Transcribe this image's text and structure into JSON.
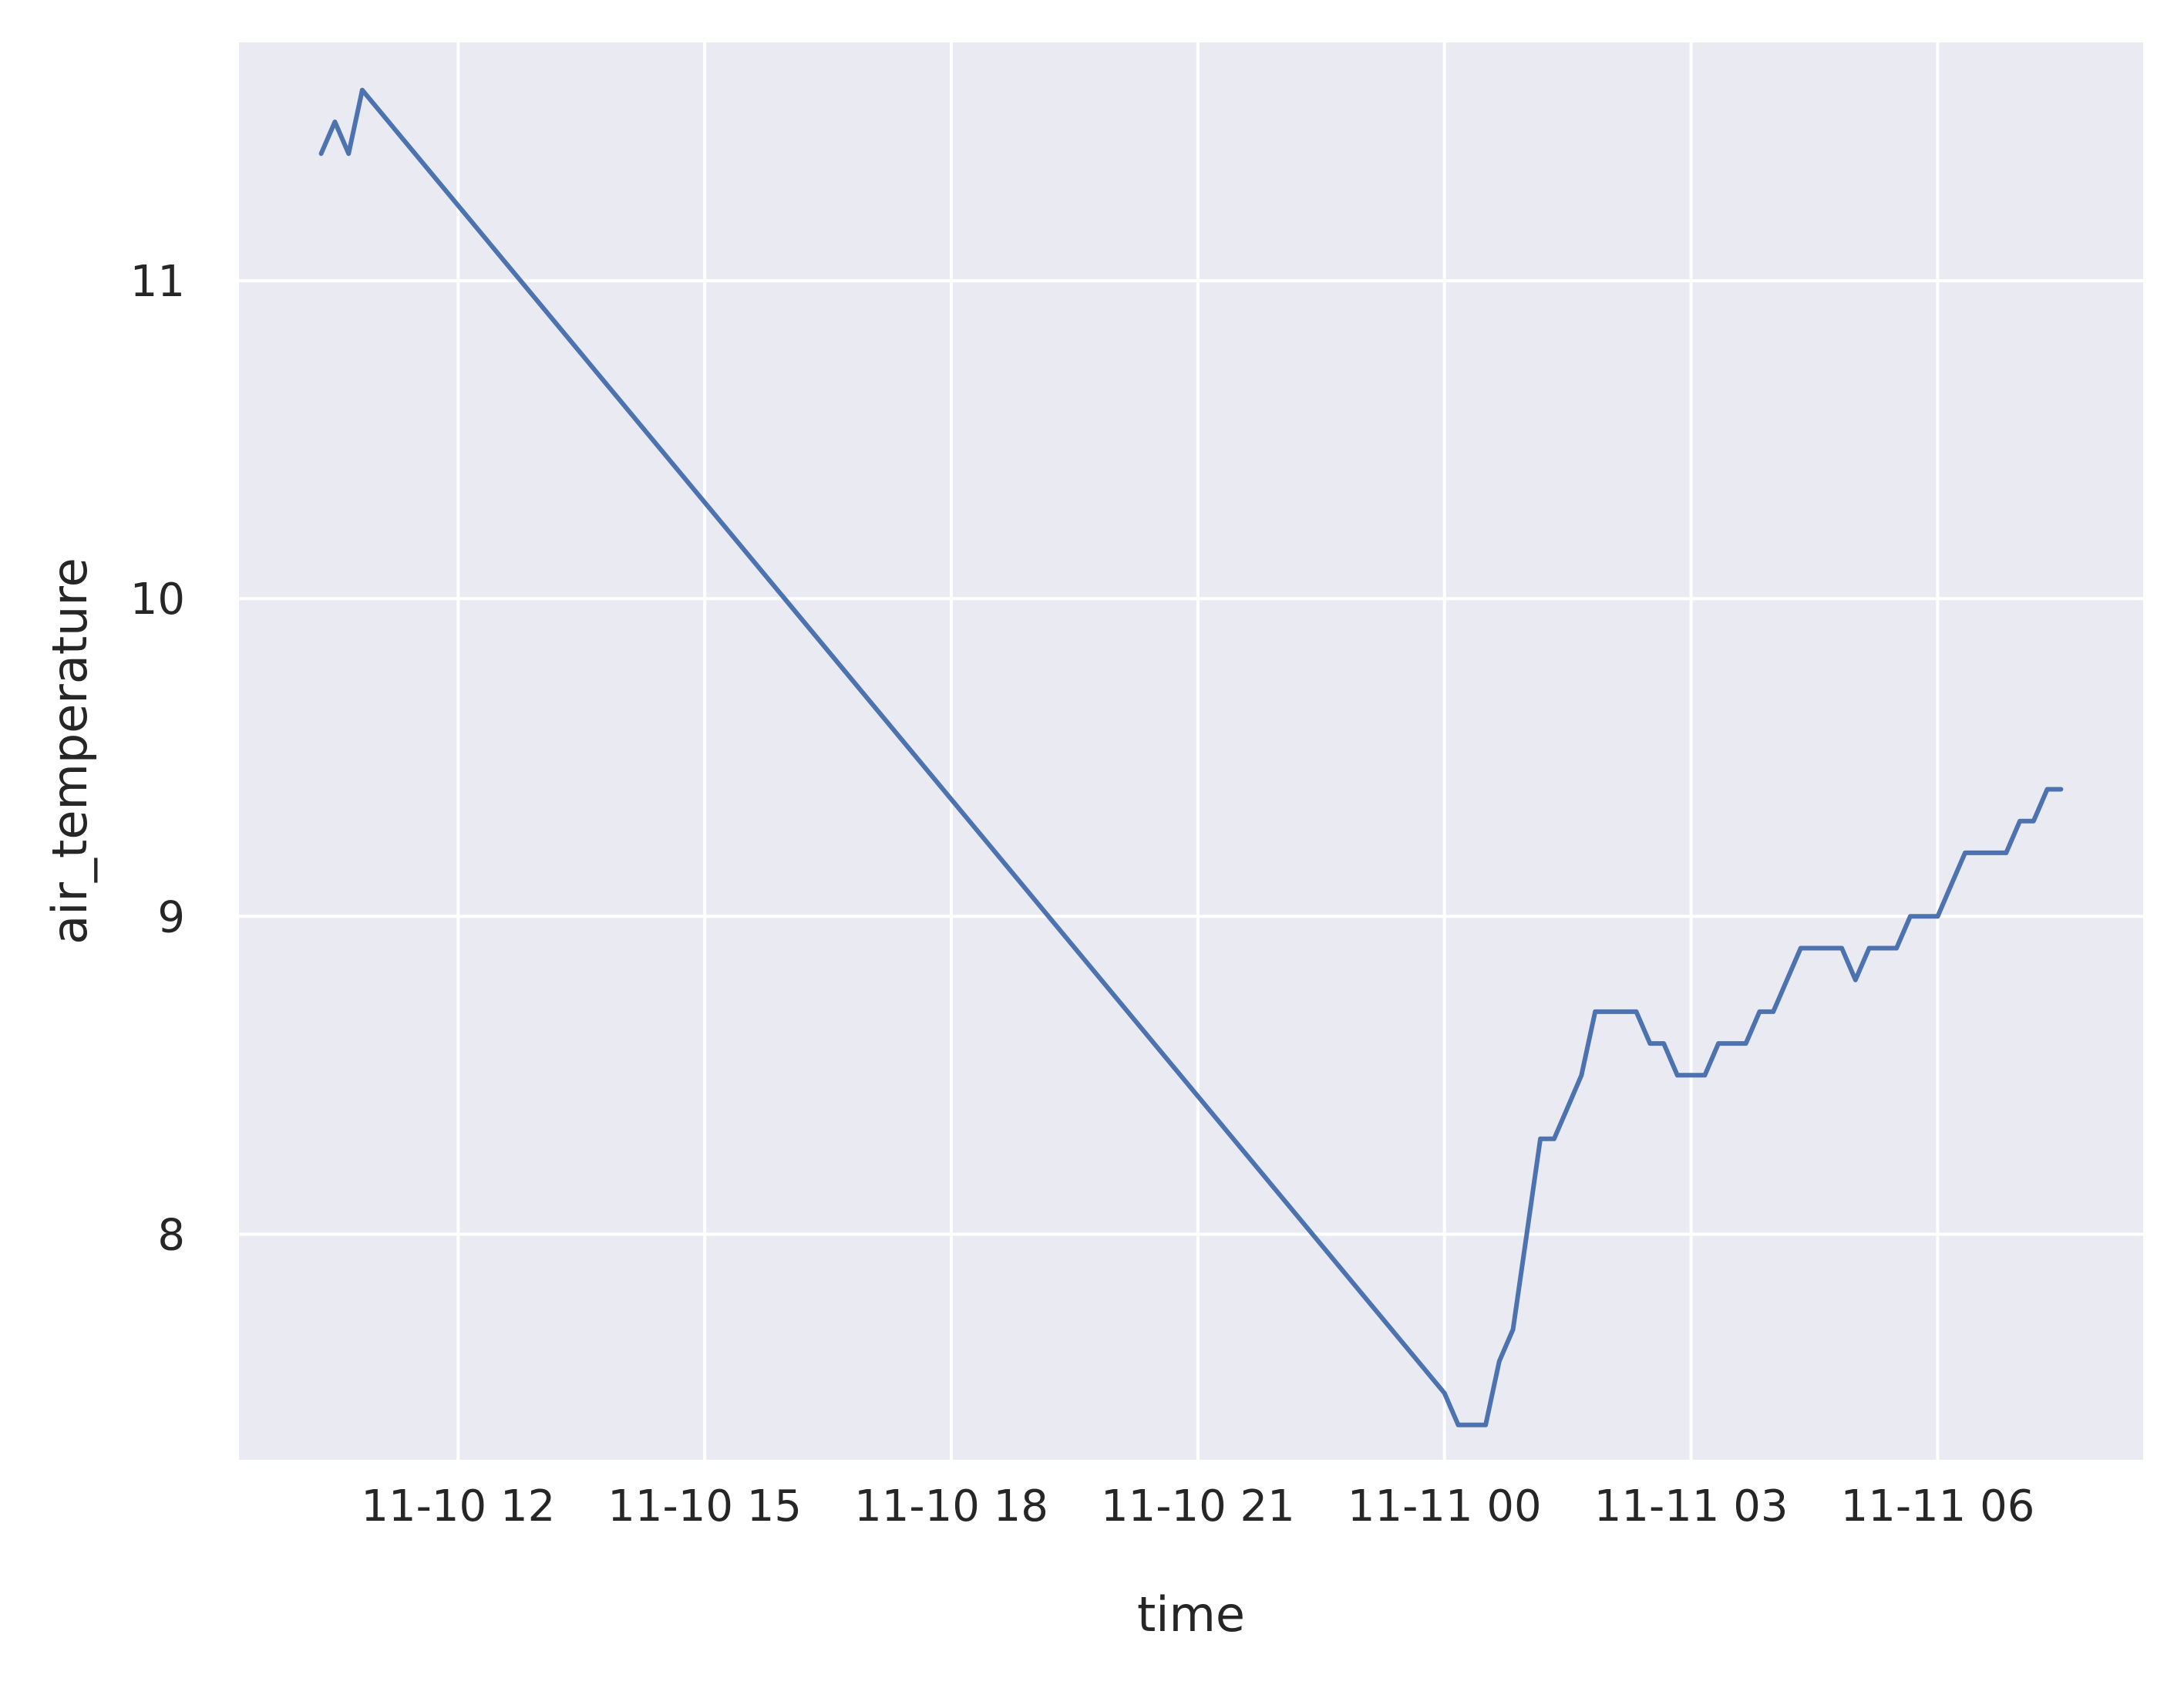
{
  "chart_data": {
    "type": "line",
    "xlabel": "time",
    "ylabel": "air_temperature",
    "x_ticks": [
      {
        "label": "11-10 12",
        "time": "2023-11-10T12:00"
      },
      {
        "label": "11-10 15",
        "time": "2023-11-10T15:00"
      },
      {
        "label": "11-10 18",
        "time": "2023-11-10T18:00"
      },
      {
        "label": "11-10 21",
        "time": "2023-11-10T21:00"
      },
      {
        "label": "11-11 00",
        "time": "2023-11-11T00:00"
      },
      {
        "label": "11-11 03",
        "time": "2023-11-11T03:00"
      },
      {
        "label": "11-11 06",
        "time": "2023-11-11T06:00"
      }
    ],
    "y_ticks": [
      8,
      9,
      10,
      11
    ],
    "xlim": [
      "2023-11-10T09:20",
      "2023-11-11T08:30"
    ],
    "ylim": [
      7.29,
      11.75
    ],
    "grid": true,
    "colors": {
      "background": "#eaeaf2",
      "grid": "#ffffff",
      "line": "#4c72b0",
      "text": "#262626"
    },
    "series": [
      {
        "x": [
          "2023-11-10T10:20",
          "2023-11-10T10:30",
          "2023-11-10T10:40",
          "2023-11-10T10:50",
          "2023-11-11T00:00",
          "2023-11-11T00:10",
          "2023-11-11T00:20",
          "2023-11-11T00:30",
          "2023-11-11T00:40",
          "2023-11-11T00:50",
          "2023-11-11T01:00",
          "2023-11-11T01:10",
          "2023-11-11T01:20",
          "2023-11-11T01:30",
          "2023-11-11T01:40",
          "2023-11-11T01:50",
          "2023-11-11T02:00",
          "2023-11-11T02:10",
          "2023-11-11T02:20",
          "2023-11-11T02:30",
          "2023-11-11T02:40",
          "2023-11-11T02:50",
          "2023-11-11T03:00",
          "2023-11-11T03:10",
          "2023-11-11T03:20",
          "2023-11-11T03:30",
          "2023-11-11T03:40",
          "2023-11-11T03:50",
          "2023-11-11T04:00",
          "2023-11-11T04:10",
          "2023-11-11T04:20",
          "2023-11-11T04:30",
          "2023-11-11T04:40",
          "2023-11-11T04:50",
          "2023-11-11T05:00",
          "2023-11-11T05:10",
          "2023-11-11T05:20",
          "2023-11-11T05:30",
          "2023-11-11T05:40",
          "2023-11-11T05:50",
          "2023-11-11T06:00",
          "2023-11-11T06:10",
          "2023-11-11T06:20",
          "2023-11-11T06:30",
          "2023-11-11T06:40",
          "2023-11-11T06:50",
          "2023-11-11T07:00",
          "2023-11-11T07:10",
          "2023-11-11T07:20",
          "2023-11-11T07:30"
        ],
        "values": [
          11.4,
          11.5,
          11.4,
          11.6,
          7.5,
          7.4,
          7.4,
          7.4,
          7.6,
          7.7,
          8.0,
          8.3,
          8.3,
          8.4,
          8.5,
          8.7,
          8.7,
          8.7,
          8.7,
          8.6,
          8.6,
          8.5,
          8.5,
          8.5,
          8.6,
          8.6,
          8.6,
          8.7,
          8.7,
          8.8,
          8.9,
          8.9,
          8.9,
          8.9,
          8.8,
          8.9,
          8.9,
          8.9,
          9.0,
          9.0,
          9.0,
          9.1,
          9.2,
          9.2,
          9.2,
          9.2,
          9.3,
          9.3,
          9.4,
          9.4
        ]
      }
    ]
  }
}
